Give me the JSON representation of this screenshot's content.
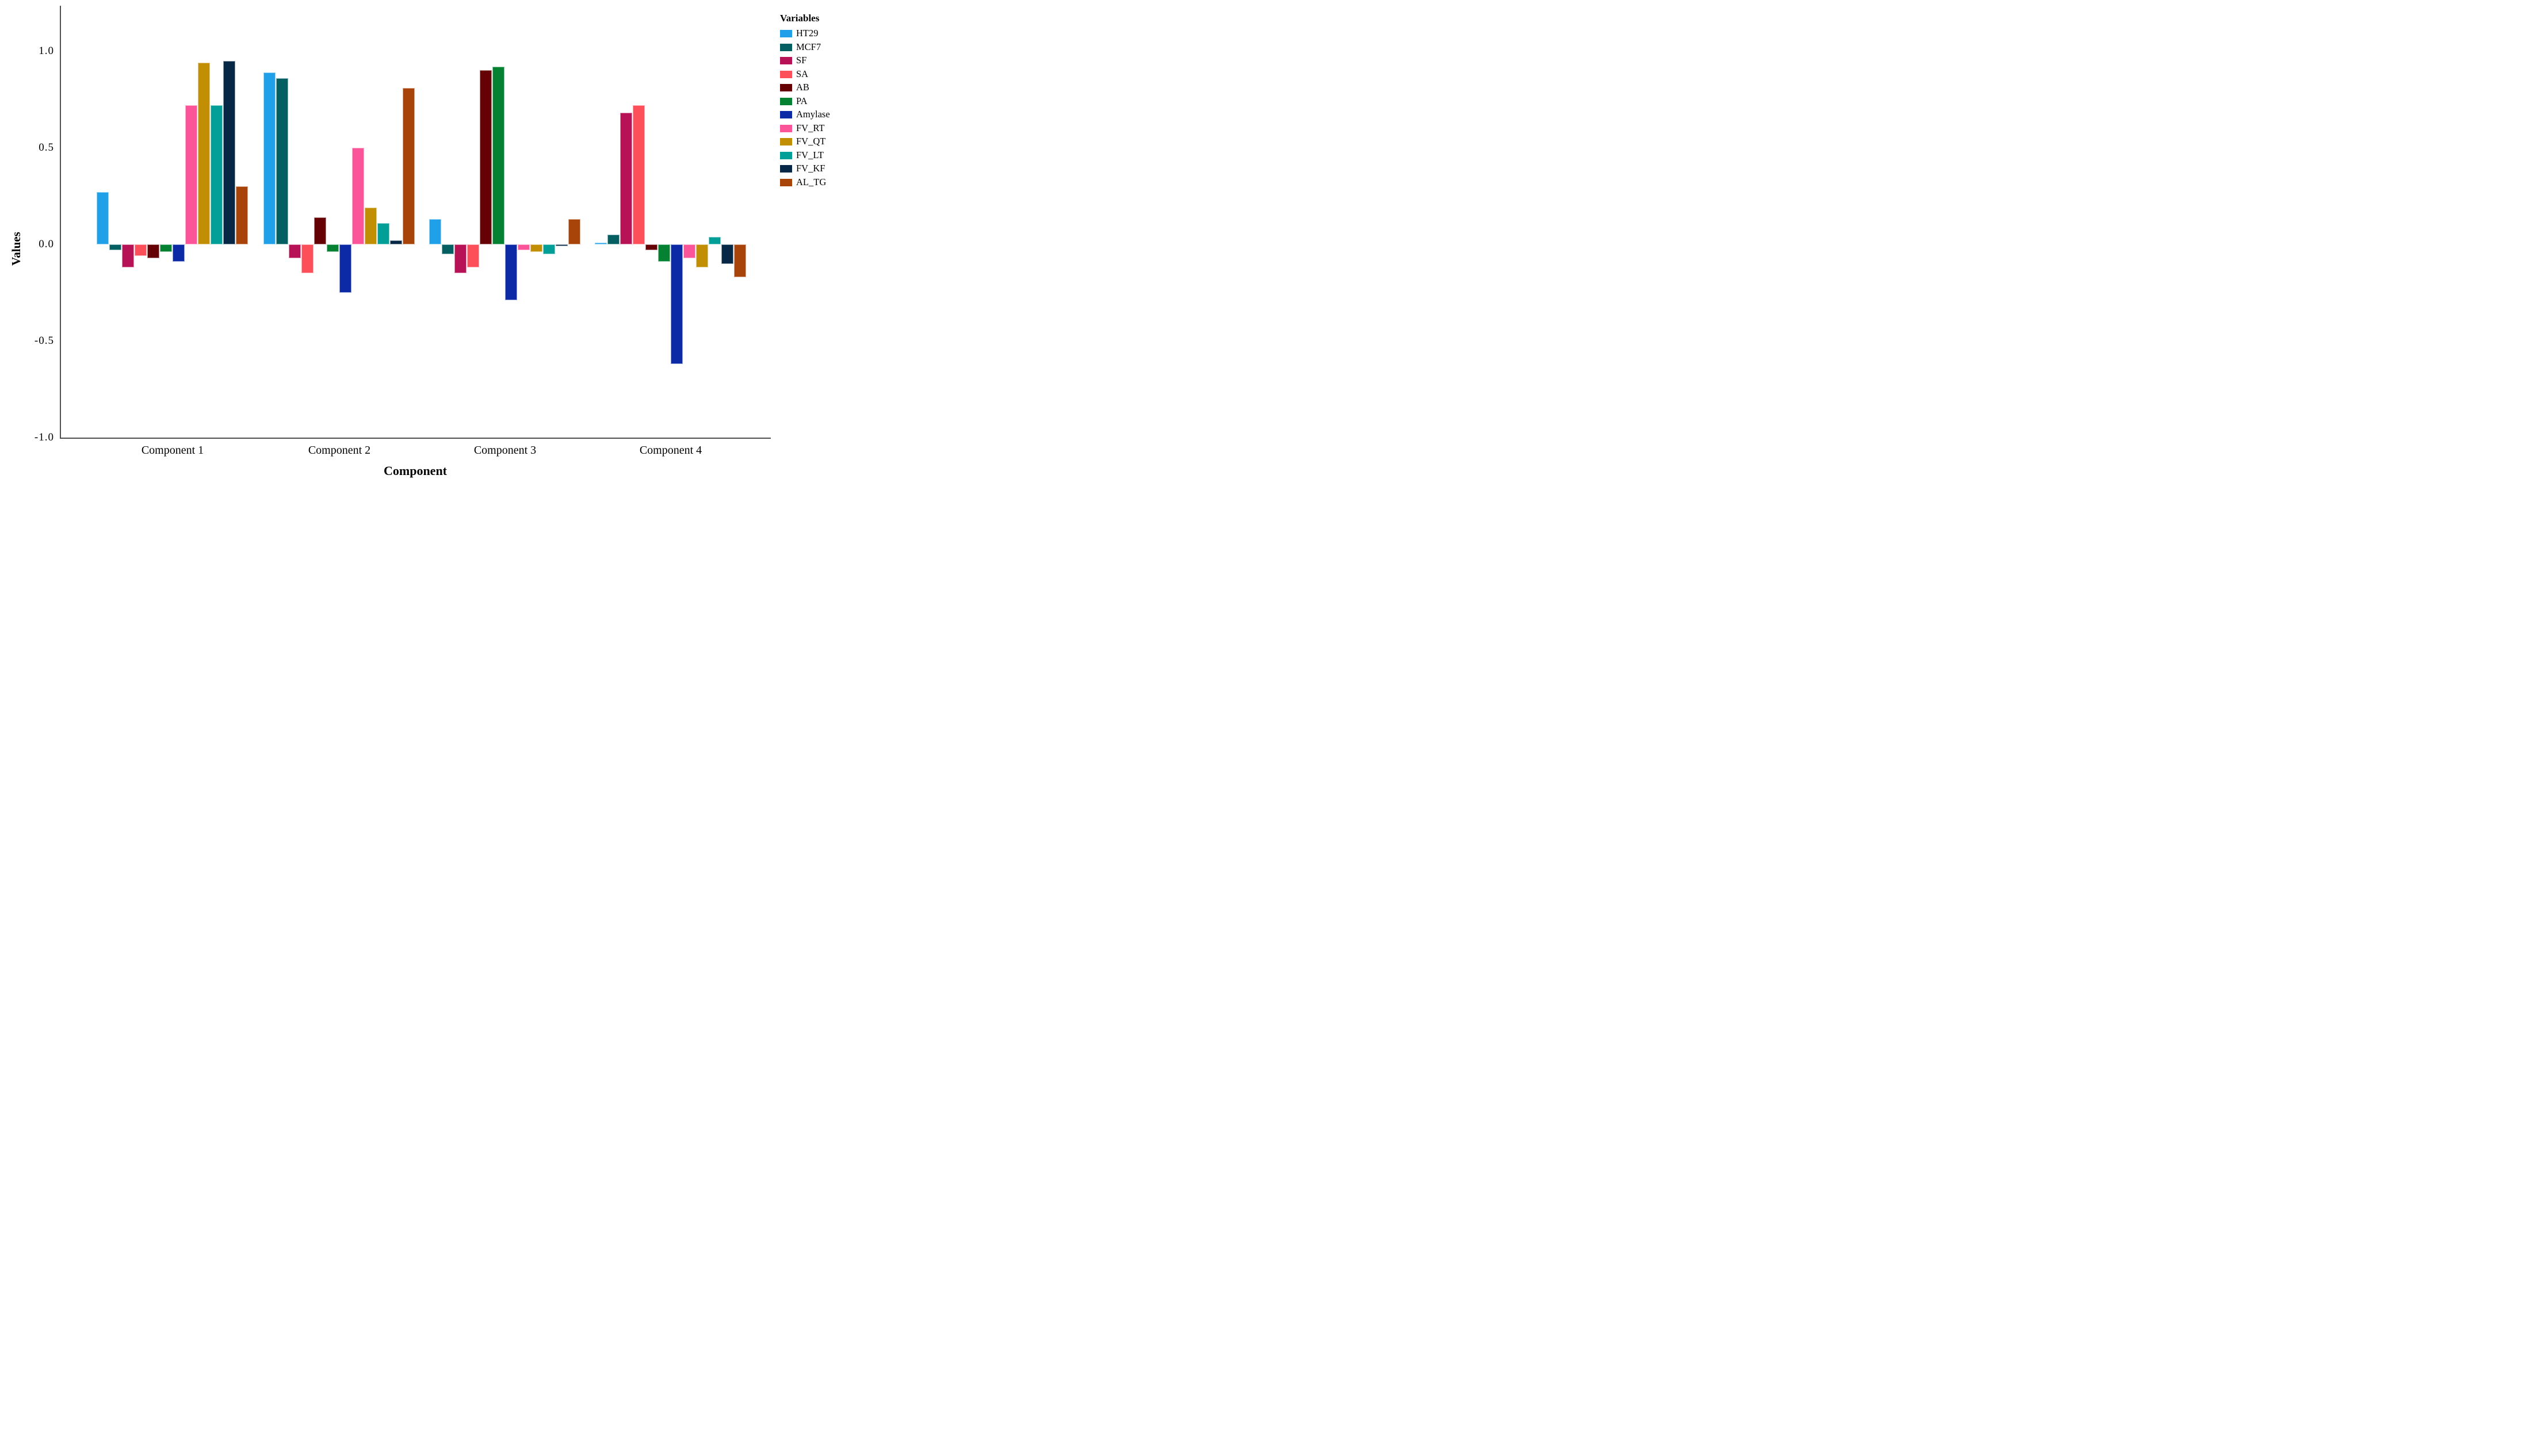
{
  "chart_data": {
    "type": "bar",
    "title": "",
    "xlabel": "Component",
    "ylabel": "Values",
    "legend_title": "Variables",
    "legend_position": "right",
    "grid": false,
    "ylim": [
      -1.0,
      1.23
    ],
    "yticks": [
      1.0,
      0.5,
      0.0,
      -0.5,
      -1.0
    ],
    "ytick_labels": [
      "1.0",
      "0.5",
      "0.0",
      "-0.5",
      "-1.0"
    ],
    "categories": [
      "Component 1",
      "Component 2",
      "Component 3",
      "Component 4"
    ],
    "series": [
      {
        "name": "HT29",
        "color": "#1FA0E8",
        "values": [
          0.27,
          0.89,
          0.13,
          0.01
        ]
      },
      {
        "name": "MCF7",
        "color": "#045F63",
        "values": [
          -0.03,
          0.86,
          -0.05,
          0.05
        ]
      },
      {
        "name": "SF",
        "color": "#B81257",
        "values": [
          -0.12,
          -0.07,
          -0.15,
          0.68
        ]
      },
      {
        "name": "SA",
        "color": "#FC4F59",
        "values": [
          -0.06,
          -0.15,
          -0.12,
          0.72
        ]
      },
      {
        "name": "AB",
        "color": "#650004",
        "values": [
          -0.07,
          0.14,
          0.9,
          -0.03
        ]
      },
      {
        "name": "PA",
        "color": "#048232",
        "values": [
          -0.04,
          -0.04,
          0.92,
          -0.09
        ]
      },
      {
        "name": "Amylase",
        "color": "#0C2AA6",
        "values": [
          -0.09,
          -0.25,
          -0.29,
          -0.62
        ]
      },
      {
        "name": "FV_RT",
        "color": "#FC5499",
        "values": [
          0.72,
          0.5,
          -0.03,
          -0.07
        ]
      },
      {
        "name": "FV_QT",
        "color": "#C28E04",
        "values": [
          0.94,
          0.19,
          -0.04,
          -0.12
        ]
      },
      {
        "name": "FV_LT",
        "color": "#029E98",
        "values": [
          0.72,
          0.11,
          -0.05,
          0.04
        ]
      },
      {
        "name": "FV_KF",
        "color": "#062846",
        "values": [
          0.95,
          0.02,
          -0.01,
          -0.1
        ]
      },
      {
        "name": "AL_TG",
        "color": "#A8430A",
        "values": [
          0.3,
          0.81,
          0.13,
          -0.17
        ]
      }
    ]
  }
}
